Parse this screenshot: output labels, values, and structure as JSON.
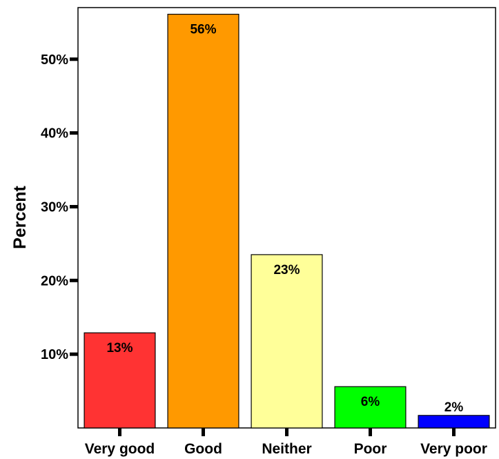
{
  "chart_data": {
    "type": "bar",
    "title": "",
    "xlabel": "",
    "ylabel": "Percent",
    "categories": [
      "Very good",
      "Good",
      "Neither",
      "Poor",
      "Very poor"
    ],
    "values": [
      12.9,
      56.1,
      23.5,
      5.6,
      1.7
    ],
    "data_labels": [
      "13%",
      "56%",
      "23%",
      "6%",
      "2%"
    ],
    "colors": [
      "#ff3333",
      "#ff9900",
      "#ffff99",
      "#00ff00",
      "#0000ff"
    ],
    "ylim": [
      0,
      57
    ],
    "yticks": [
      10,
      20,
      30,
      40,
      50
    ],
    "ytick_labels": [
      "10%",
      "20%",
      "30%",
      "40%",
      "50%"
    ],
    "grid": false,
    "legend": "none"
  }
}
